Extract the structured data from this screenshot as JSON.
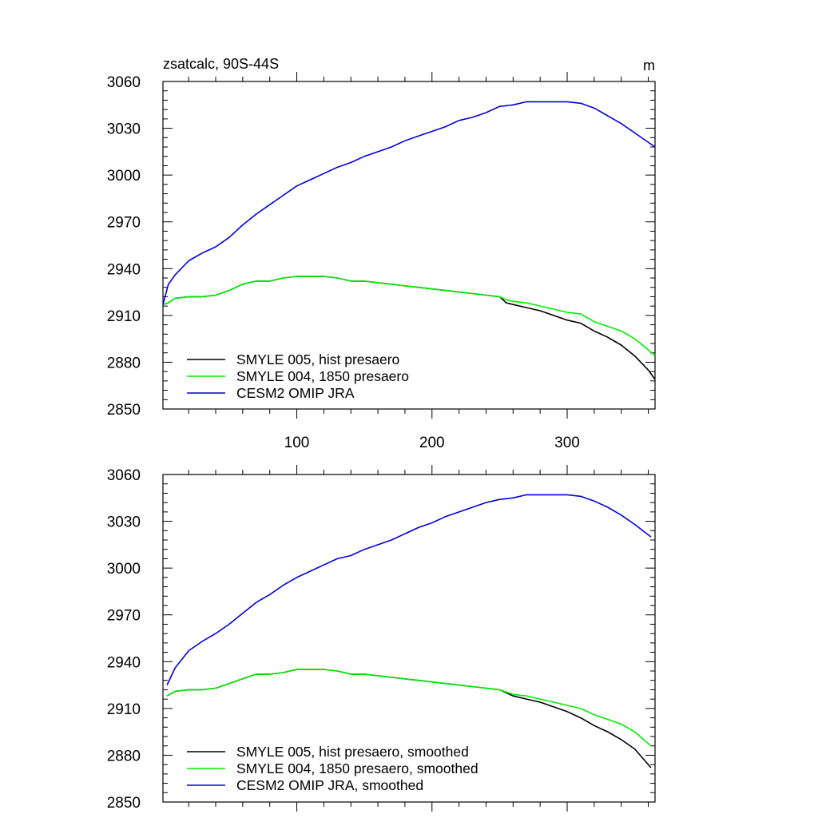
{
  "chart_data": [
    {
      "type": "line",
      "title": "zsatcalc, 90S-44S",
      "units": "m",
      "xlabel": "",
      "ylabel": "",
      "xlim": [
        1,
        365
      ],
      "ylim": [
        2850,
        3060
      ],
      "xticks": [
        100,
        200,
        300
      ],
      "xtick_labels": [
        "100",
        "200",
        "300"
      ],
      "yticks": [
        2850,
        2880,
        2910,
        2940,
        2970,
        3000,
        3030,
        3060
      ],
      "ytick_labels": [
        "2850",
        "2880",
        "2910",
        "2940",
        "2970",
        "3000",
        "3030",
        "3060"
      ],
      "grid": false,
      "legend_position": "bottom-left",
      "series": [
        {
          "name": "SMYLE 005, hist presaero",
          "color": "#000000",
          "points": [
            [
              1,
              2917
            ],
            [
              5,
              2918
            ],
            [
              10,
              2921
            ],
            [
              20,
              2922
            ],
            [
              30,
              2922
            ],
            [
              40,
              2923
            ],
            [
              50,
              2926
            ],
            [
              60,
              2930
            ],
            [
              70,
              2932
            ],
            [
              80,
              2932
            ],
            [
              90,
              2934
            ],
            [
              100,
              2935
            ],
            [
              110,
              2935
            ],
            [
              120,
              2935
            ],
            [
              130,
              2934
            ],
            [
              140,
              2932
            ],
            [
              150,
              2932
            ],
            [
              160,
              2931
            ],
            [
              170,
              2930
            ],
            [
              180,
              2929
            ],
            [
              190,
              2928
            ],
            [
              200,
              2927
            ],
            [
              210,
              2926
            ],
            [
              220,
              2925
            ],
            [
              230,
              2924
            ],
            [
              240,
              2923
            ],
            [
              250,
              2922
            ],
            [
              255,
              2918
            ],
            [
              260,
              2917
            ],
            [
              270,
              2915
            ],
            [
              280,
              2913
            ],
            [
              290,
              2910
            ],
            [
              300,
              2907
            ],
            [
              310,
              2905
            ],
            [
              320,
              2900
            ],
            [
              330,
              2896
            ],
            [
              340,
              2891
            ],
            [
              350,
              2884
            ],
            [
              360,
              2875
            ],
            [
              365,
              2869
            ]
          ]
        },
        {
          "name": "SMYLE 004, 1850 presaero",
          "color": "#00ee00",
          "points": [
            [
              1,
              2917
            ],
            [
              5,
              2918
            ],
            [
              10,
              2921
            ],
            [
              20,
              2922
            ],
            [
              30,
              2922
            ],
            [
              40,
              2923
            ],
            [
              50,
              2926
            ],
            [
              60,
              2930
            ],
            [
              70,
              2932
            ],
            [
              80,
              2932
            ],
            [
              90,
              2934
            ],
            [
              100,
              2935
            ],
            [
              110,
              2935
            ],
            [
              120,
              2935
            ],
            [
              130,
              2934
            ],
            [
              140,
              2932
            ],
            [
              150,
              2932
            ],
            [
              160,
              2931
            ],
            [
              170,
              2930
            ],
            [
              180,
              2929
            ],
            [
              190,
              2928
            ],
            [
              200,
              2927
            ],
            [
              210,
              2926
            ],
            [
              220,
              2925
            ],
            [
              230,
              2924
            ],
            [
              240,
              2923
            ],
            [
              250,
              2922
            ],
            [
              255,
              2920
            ],
            [
              260,
              2919
            ],
            [
              270,
              2918
            ],
            [
              280,
              2916
            ],
            [
              290,
              2914
            ],
            [
              300,
              2912
            ],
            [
              310,
              2911
            ],
            [
              320,
              2906
            ],
            [
              330,
              2903
            ],
            [
              340,
              2900
            ],
            [
              350,
              2895
            ],
            [
              360,
              2888
            ],
            [
              365,
              2884
            ]
          ]
        },
        {
          "name": "CESM2 OMIP JRA",
          "color": "#0000dd",
          "points": [
            [
              1,
              2917
            ],
            [
              5,
              2930
            ],
            [
              10,
              2936
            ],
            [
              20,
              2945
            ],
            [
              30,
              2950
            ],
            [
              40,
              2954
            ],
            [
              50,
              2960
            ],
            [
              60,
              2968
            ],
            [
              70,
              2975
            ],
            [
              80,
              2981
            ],
            [
              90,
              2987
            ],
            [
              100,
              2993
            ],
            [
              110,
              2997
            ],
            [
              120,
              3001
            ],
            [
              130,
              3005
            ],
            [
              140,
              3008
            ],
            [
              150,
              3012
            ],
            [
              160,
              3015
            ],
            [
              170,
              3018
            ],
            [
              180,
              3022
            ],
            [
              190,
              3025
            ],
            [
              200,
              3028
            ],
            [
              210,
              3031
            ],
            [
              220,
              3035
            ],
            [
              230,
              3037
            ],
            [
              240,
              3040
            ],
            [
              250,
              3044
            ],
            [
              260,
              3045
            ],
            [
              270,
              3047
            ],
            [
              280,
              3047
            ],
            [
              290,
              3047
            ],
            [
              300,
              3047
            ],
            [
              310,
              3046
            ],
            [
              320,
              3043
            ],
            [
              330,
              3038
            ],
            [
              340,
              3033
            ],
            [
              350,
              3027
            ],
            [
              360,
              3021
            ],
            [
              365,
              3018
            ]
          ]
        }
      ]
    },
    {
      "type": "line",
      "title": "",
      "xlabel": "",
      "ylabel": "",
      "xlim": [
        1,
        365
      ],
      "ylim": [
        2850,
        3060
      ],
      "xticks": [
        100,
        200,
        300
      ],
      "xtick_labels": [],
      "yticks": [
        2850,
        2880,
        2910,
        2940,
        2970,
        3000,
        3030,
        3060
      ],
      "ytick_labels": [
        "2850",
        "2880",
        "2910",
        "2940",
        "2970",
        "3000",
        "3030",
        "3060"
      ],
      "grid": false,
      "legend_position": "bottom-left",
      "series": [
        {
          "name": "SMYLE 005, hist presaero, smoothed",
          "color": "#000000",
          "points": [
            [
              4,
              2918
            ],
            [
              10,
              2921
            ],
            [
              20,
              2922
            ],
            [
              30,
              2922
            ],
            [
              40,
              2923
            ],
            [
              50,
              2926
            ],
            [
              60,
              2929
            ],
            [
              70,
              2932
            ],
            [
              80,
              2932
            ],
            [
              90,
              2933
            ],
            [
              100,
              2935
            ],
            [
              110,
              2935
            ],
            [
              120,
              2935
            ],
            [
              130,
              2934
            ],
            [
              140,
              2932
            ],
            [
              150,
              2932
            ],
            [
              160,
              2931
            ],
            [
              170,
              2930
            ],
            [
              180,
              2929
            ],
            [
              190,
              2928
            ],
            [
              200,
              2927
            ],
            [
              210,
              2926
            ],
            [
              220,
              2925
            ],
            [
              230,
              2924
            ],
            [
              240,
              2923
            ],
            [
              250,
              2922
            ],
            [
              260,
              2918
            ],
            [
              270,
              2916
            ],
            [
              280,
              2914
            ],
            [
              290,
              2911
            ],
            [
              300,
              2908
            ],
            [
              310,
              2904
            ],
            [
              320,
              2899
            ],
            [
              330,
              2895
            ],
            [
              340,
              2890
            ],
            [
              350,
              2884
            ],
            [
              362,
              2872
            ]
          ]
        },
        {
          "name": "SMYLE 004, 1850 presaero, smoothed",
          "color": "#00ee00",
          "points": [
            [
              4,
              2918
            ],
            [
              10,
              2921
            ],
            [
              20,
              2922
            ],
            [
              30,
              2922
            ],
            [
              40,
              2923
            ],
            [
              50,
              2926
            ],
            [
              60,
              2929
            ],
            [
              70,
              2932
            ],
            [
              80,
              2932
            ],
            [
              90,
              2933
            ],
            [
              100,
              2935
            ],
            [
              110,
              2935
            ],
            [
              120,
              2935
            ],
            [
              130,
              2934
            ],
            [
              140,
              2932
            ],
            [
              150,
              2932
            ],
            [
              160,
              2931
            ],
            [
              170,
              2930
            ],
            [
              180,
              2929
            ],
            [
              190,
              2928
            ],
            [
              200,
              2927
            ],
            [
              210,
              2926
            ],
            [
              220,
              2925
            ],
            [
              230,
              2924
            ],
            [
              240,
              2923
            ],
            [
              250,
              2922
            ],
            [
              260,
              2919
            ],
            [
              270,
              2918
            ],
            [
              280,
              2916
            ],
            [
              290,
              2914
            ],
            [
              300,
              2912
            ],
            [
              310,
              2910
            ],
            [
              320,
              2906
            ],
            [
              330,
              2903
            ],
            [
              340,
              2900
            ],
            [
              350,
              2895
            ],
            [
              362,
              2886
            ]
          ]
        },
        {
          "name": "CESM2 OMIP JRA, smoothed",
          "color": "#0000dd",
          "points": [
            [
              4,
              2925
            ],
            [
              10,
              2936
            ],
            [
              20,
              2947
            ],
            [
              30,
              2953
            ],
            [
              40,
              2958
            ],
            [
              50,
              2964
            ],
            [
              60,
              2971
            ],
            [
              70,
              2978
            ],
            [
              80,
              2983
            ],
            [
              90,
              2989
            ],
            [
              100,
              2994
            ],
            [
              110,
              2998
            ],
            [
              120,
              3002
            ],
            [
              130,
              3006
            ],
            [
              140,
              3008
            ],
            [
              150,
              3012
            ],
            [
              160,
              3015
            ],
            [
              170,
              3018
            ],
            [
              180,
              3022
            ],
            [
              190,
              3026
            ],
            [
              200,
              3029
            ],
            [
              210,
              3033
            ],
            [
              220,
              3036
            ],
            [
              230,
              3039
            ],
            [
              240,
              3042
            ],
            [
              250,
              3044
            ],
            [
              260,
              3045
            ],
            [
              270,
              3047
            ],
            [
              280,
              3047
            ],
            [
              290,
              3047
            ],
            [
              300,
              3047
            ],
            [
              310,
              3046
            ],
            [
              320,
              3043
            ],
            [
              330,
              3039
            ],
            [
              340,
              3034
            ],
            [
              350,
              3028
            ],
            [
              362,
              3020
            ]
          ]
        }
      ]
    }
  ]
}
